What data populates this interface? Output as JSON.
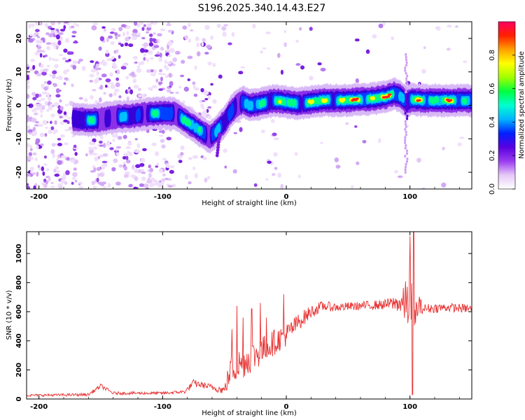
{
  "title": "S196.2025.340.14.43.E27",
  "chart_data": [
    {
      "type": "heatmap",
      "name": "spectrogram",
      "xlabel": "Height of straight line (km)",
      "ylabel": "Frequency (Hz)",
      "xlim": [
        -210,
        150
      ],
      "ylim": [
        -25,
        25
      ],
      "xticks": [
        -200,
        -100,
        0,
        100
      ],
      "yticks": [
        -20,
        -10,
        0,
        10,
        20
      ],
      "colorbar": {
        "label": "Normalized spectral amplitude",
        "range": [
          0,
          1
        ],
        "ticks": [
          "0.0",
          "0.2",
          "0.4",
          "0.6",
          "0.8"
        ],
        "colors": [
          "#ffffff",
          "#e6c8f8",
          "#9a3cf0",
          "#5a00e0",
          "#0020ff",
          "#00b4ff",
          "#00ffd0",
          "#00ff40",
          "#a0ff00",
          "#ffff00",
          "#ffa000",
          "#ff2000",
          "#ff0060"
        ]
      },
      "ridge": {
        "x": [
          -172,
          -160,
          -150,
          -140,
          -125,
          -110,
          -100,
          -90,
          -80,
          -70,
          -62,
          -57,
          -50,
          -45,
          -40,
          -35,
          -30,
          -20,
          -10,
          0,
          10,
          20,
          30,
          40,
          50,
          60,
          70,
          80,
          87,
          93,
          97,
          102,
          110,
          120,
          130,
          140,
          150
        ],
        "y": [
          -4,
          -4.5,
          -4.2,
          -3.5,
          -3.2,
          -2.5,
          -2.3,
          -2.5,
          -5,
          -7.5,
          -9.5,
          -8,
          -5,
          -2,
          0,
          1,
          0,
          0.5,
          1.5,
          1,
          0.5,
          1,
          1.5,
          1.5,
          1.5,
          1.8,
          2,
          2.5,
          3.5,
          2.5,
          1,
          1.8,
          1.5,
          1.5,
          1.5,
          1.5,
          1.5
        ],
        "amplitude": [
          0.5,
          0.65,
          0.45,
          0.5,
          0.55,
          0.6,
          0.65,
          0.6,
          0.7,
          0.75,
          0.6,
          0.55,
          0.5,
          0.5,
          0.6,
          0.7,
          0.55,
          0.75,
          0.8,
          0.8,
          0.7,
          0.9,
          0.8,
          0.85,
          0.95,
          0.97,
          0.95,
          0.9,
          1.0,
          0.8,
          0.55,
          0.75,
          0.9,
          0.95,
          0.9,
          0.85,
          0.8
        ]
      }
    },
    {
      "type": "line",
      "name": "snr",
      "xlabel": "Height of straight line (km)",
      "ylabel": "SNR (10 * v/v)",
      "xlim": [
        -210,
        150
      ],
      "ylim": [
        0,
        1150
      ],
      "xticks": [
        -200,
        -100,
        0,
        100
      ],
      "yticks": [
        0,
        200,
        400,
        600,
        800,
        1000
      ],
      "color": "#e83030",
      "envelope": {
        "x": [
          -210,
          -160,
          -150,
          -140,
          -100,
          -82,
          -75,
          -65,
          -50,
          -45,
          -30,
          -20,
          -10,
          0,
          10,
          20,
          30,
          40,
          60,
          80,
          90,
          95,
          100,
          103,
          106,
          110,
          130,
          150
        ],
        "y": [
          25,
          30,
          90,
          40,
          40,
          50,
          110,
          90,
          60,
          200,
          280,
          330,
          390,
          440,
          530,
          600,
          640,
          630,
          640,
          650,
          660,
          650,
          700,
          350,
          650,
          620,
          630,
          620
        ],
        "noise": [
          8,
          10,
          15,
          10,
          10,
          12,
          25,
          20,
          30,
          120,
          110,
          100,
          90,
          80,
          60,
          45,
          35,
          30,
          30,
          35,
          60,
          120,
          250,
          300,
          120,
          35,
          30,
          30
        ]
      },
      "spikes": [
        {
          "x": -44,
          "y": 480
        },
        {
          "x": -40,
          "y": 640
        },
        {
          "x": -35,
          "y": 560
        },
        {
          "x": -28,
          "y": 620
        },
        {
          "x": -21,
          "y": 660
        },
        {
          "x": -16,
          "y": 560
        },
        {
          "x": -2,
          "y": 720
        },
        {
          "x": 100,
          "y": 1120
        },
        {
          "x": 103,
          "y": 1150
        },
        {
          "x": 102,
          "y": 30
        }
      ]
    }
  ]
}
